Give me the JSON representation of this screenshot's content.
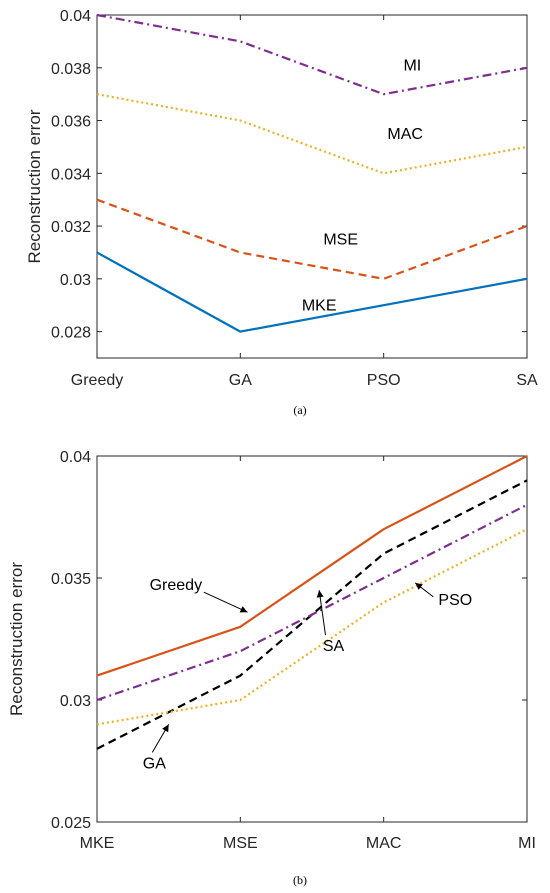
{
  "chart_data": [
    {
      "type": "line",
      "caption": "(a)",
      "ylabel": "Reconstruction error",
      "categories": [
        "Greedy",
        "GA",
        "PSO",
        "SA"
      ],
      "ylim": [
        0.027,
        0.04
      ],
      "yticks": [
        0.028,
        0.03,
        0.032,
        0.034,
        0.036,
        0.038,
        0.04
      ],
      "ytick_labels": [
        "0.028",
        "0.03",
        "0.032",
        "0.034",
        "0.036",
        "0.038",
        "0.04"
      ],
      "grid": false,
      "series": [
        {
          "name": "MI",
          "values": [
            0.04,
            0.039,
            0.037,
            0.038
          ],
          "color": "#7E2F8E",
          "dash": "dashdot"
        },
        {
          "name": "MAC",
          "values": [
            0.037,
            0.036,
            0.034,
            0.035
          ],
          "color": "#EDB120",
          "dash": "dotted"
        },
        {
          "name": "MSE",
          "values": [
            0.033,
            0.031,
            0.03,
            0.032
          ],
          "color": "#D95319",
          "dash": "dashed"
        },
        {
          "name": "MKE",
          "values": [
            0.031,
            0.028,
            0.029,
            0.03
          ],
          "color": "#0072BD",
          "dash": "solid"
        }
      ],
      "annotations": [
        {
          "text": "MI",
          "x": 2.2,
          "y": 0.0379
        },
        {
          "text": "MAC",
          "x": 2.15,
          "y": 0.0353
        },
        {
          "text": "MSE",
          "x": 1.7,
          "y": 0.0313
        },
        {
          "text": "MKE",
          "x": 1.55,
          "y": 0.0288
        }
      ]
    },
    {
      "type": "line",
      "caption": "(b)",
      "ylabel": "Reconstruction error",
      "categories": [
        "MKE",
        "MSE",
        "MAC",
        "MI"
      ],
      "ylim": [
        0.025,
        0.04
      ],
      "yticks": [
        0.025,
        0.03,
        0.035,
        0.04
      ],
      "ytick_labels": [
        "0.025",
        "0.03",
        "0.035",
        "0.04"
      ],
      "grid": false,
      "series": [
        {
          "name": "Greedy",
          "values": [
            0.031,
            0.033,
            0.037,
            0.04
          ],
          "color": "#D95319",
          "dash": "solid"
        },
        {
          "name": "GA",
          "values": [
            0.028,
            0.031,
            0.036,
            0.039
          ],
          "color": "#000000",
          "dash": "dashed"
        },
        {
          "name": "PSO",
          "values": [
            0.029,
            0.03,
            0.034,
            0.037
          ],
          "color": "#EDB120",
          "dash": "dotted"
        },
        {
          "name": "SA",
          "values": [
            0.03,
            0.032,
            0.035,
            0.038
          ],
          "color": "#7E2F8E",
          "dash": "dashdot"
        }
      ],
      "annotations": [
        {
          "text": "Greedy",
          "x": 0.55,
          "y": 0.0345,
          "arrow_to": [
            1.05,
            0.0336
          ]
        },
        {
          "text": "SA",
          "x": 1.65,
          "y": 0.032,
          "arrow_to": [
            1.55,
            0.0345
          ]
        },
        {
          "text": "PSO",
          "x": 2.5,
          "y": 0.0339,
          "arrow_to": [
            2.22,
            0.0348
          ]
        },
        {
          "text": "GA",
          "x": 0.4,
          "y": 0.0272,
          "arrow_to": [
            0.5,
            0.029
          ]
        }
      ]
    }
  ]
}
